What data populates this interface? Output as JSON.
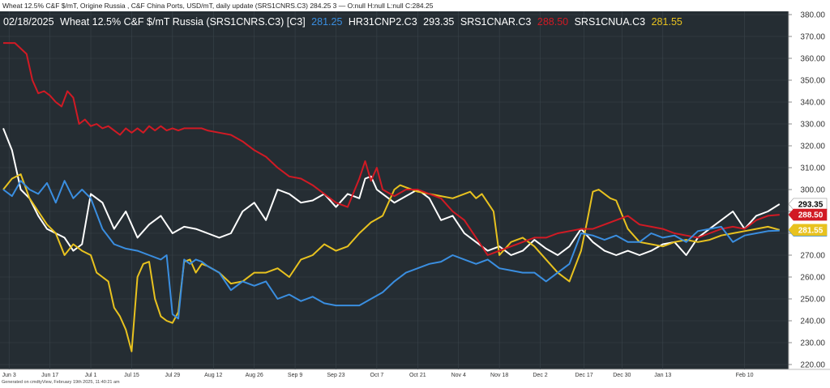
{
  "header": {
    "info": "Wheat 12.5%  C&F $/mT, Origine Russia , C&F China Ports, USD/mT, daily update (SRS1CNRS.C3) 284.25 3 — O:null H:null L:null C:284.25"
  },
  "legend": {
    "date": "02/18/2025",
    "title": "Wheat 12.5% C&F $/mT Russia (SRS1CNRS.C3) [C3]",
    "items": [
      {
        "text": "281.25",
        "color": "#3a8ee0"
      },
      {
        "text": "HR31CNP2.C3",
        "color": "#ffffff"
      },
      {
        "text": "293.35",
        "color": "#ffffff"
      },
      {
        "text": "SRS1CNAR.C3",
        "color": "#ffffff"
      },
      {
        "text": "288.50",
        "color": "#d11a24"
      },
      {
        "text": "SRS1CNUA.C3",
        "color": "#ffffff"
      },
      {
        "text": "281.55",
        "color": "#e8c21f"
      }
    ]
  },
  "footer": {
    "text": "Generated on cmdtyView, February 19th 2025, 11:40:21 am"
  },
  "colors": {
    "background": "#252d33",
    "grid": "#3a444b",
    "russia": "#3a8ee0",
    "hr31": "#ffffff",
    "argentina": "#d11a24",
    "ukraine": "#e8c21f"
  },
  "chart_data": {
    "type": "line",
    "title": "Wheat 12.5% C&F $/mT Russia (SRS1CNRS.C3) [C3]",
    "ylim": [
      220,
      380
    ],
    "xlim": [
      0,
      268
    ],
    "y_ticks": [
      "220.00",
      "230.00",
      "240.00",
      "250.00",
      "260.00",
      "270.00",
      "280.00",
      "290.00",
      "300.00",
      "310.00",
      "320.00",
      "330.00",
      "340.00",
      "350.00",
      "360.00",
      "370.00",
      "380.00"
    ],
    "x_ticks": [
      {
        "label": "Jun 3",
        "x": 2
      },
      {
        "label": "Jun 17",
        "x": 16
      },
      {
        "label": "Jul 1",
        "x": 30
      },
      {
        "label": "Jul 15",
        "x": 44
      },
      {
        "label": "Jul 29",
        "x": 58
      },
      {
        "label": "Aug 12",
        "x": 72
      },
      {
        "label": "Aug 26",
        "x": 86
      },
      {
        "label": "Sep 9",
        "x": 100
      },
      {
        "label": "Sep 23",
        "x": 114
      },
      {
        "label": "Oct 7",
        "x": 128
      },
      {
        "label": "Oct 21",
        "x": 142
      },
      {
        "label": "Nov 4",
        "x": 156
      },
      {
        "label": "Nov 18",
        "x": 170
      },
      {
        "label": "Dec 2",
        "x": 184
      },
      {
        "label": "Dec 17",
        "x": 199
      },
      {
        "label": "Dec 30",
        "x": 212
      },
      {
        "label": "Jan 13",
        "x": 226
      },
      {
        "label": "Feb 10",
        "x": 254
      }
    ],
    "series": [
      {
        "name": "SRS1CNRS.C3",
        "color": "#3a8ee0",
        "last": "281.25",
        "x": [
          0,
          3,
          6,
          9,
          12,
          15,
          18,
          21,
          24,
          27,
          30,
          34,
          38,
          42,
          46,
          50,
          54,
          56,
          58,
          60,
          62,
          64,
          66,
          68,
          70,
          74,
          78,
          82,
          86,
          90,
          94,
          98,
          102,
          106,
          110,
          114,
          118,
          122,
          126,
          130,
          134,
          138,
          142,
          146,
          150,
          154,
          158,
          162,
          166,
          170,
          174,
          178,
          182,
          186,
          190,
          194,
          198,
          202,
          206,
          210,
          214,
          218,
          222,
          226,
          230,
          234,
          238,
          242,
          246,
          250,
          254,
          258,
          262,
          266
        ],
        "y": [
          300,
          297,
          304,
          300,
          298,
          303,
          294,
          304,
          296,
          300,
          296,
          282,
          275,
          273,
          272,
          270,
          268,
          270,
          243,
          241,
          268,
          266,
          268,
          267,
          265,
          262,
          254,
          258,
          256,
          258,
          250,
          252,
          249,
          251,
          248,
          247,
          247,
          247,
          250,
          253,
          258,
          262,
          264,
          266,
          267,
          270,
          268,
          266,
          268,
          264,
          263,
          262,
          262,
          258,
          262,
          266,
          280,
          279,
          277,
          279,
          276,
          276,
          280,
          278,
          279,
          276,
          281,
          282,
          283,
          276,
          279,
          280,
          281,
          281.25
        ]
      },
      {
        "name": "HR31CNP2.C3",
        "color": "#ffffff",
        "last": "293.35",
        "x": [
          0,
          3,
          6,
          9,
          12,
          15,
          18,
          21,
          24,
          27,
          30,
          34,
          38,
          42,
          46,
          50,
          54,
          58,
          62,
          66,
          70,
          74,
          78,
          82,
          86,
          90,
          94,
          98,
          102,
          106,
          110,
          114,
          118,
          122,
          124,
          126,
          128,
          130,
          134,
          138,
          142,
          146,
          150,
          154,
          158,
          162,
          166,
          170,
          174,
          178,
          182,
          186,
          190,
          194,
          198,
          202,
          206,
          210,
          214,
          218,
          222,
          226,
          230,
          234,
          238,
          242,
          246,
          250,
          254,
          258,
          262,
          266
        ],
        "y": [
          328,
          318,
          300,
          296,
          288,
          282,
          280,
          278,
          272,
          275,
          298,
          294,
          282,
          290,
          278,
          284,
          288,
          280,
          283,
          282,
          280,
          278,
          280,
          290,
          294,
          286,
          300,
          298,
          294,
          295,
          298,
          292,
          298,
          296,
          305,
          306,
          300,
          298,
          294,
          297,
          300,
          296,
          286,
          288,
          280,
          276,
          272,
          274,
          270,
          272,
          277,
          273,
          270,
          274,
          282,
          276,
          272,
          270,
          272,
          270,
          272,
          275,
          276,
          270,
          278,
          282,
          286,
          290,
          282,
          288,
          290,
          293.35
        ]
      },
      {
        "name": "SRS1CNAR.C3",
        "color": "#d11a24",
        "last": "288.50",
        "x": [
          0,
          4,
          8,
          10,
          12,
          14,
          16,
          18,
          20,
          22,
          24,
          26,
          28,
          30,
          32,
          34,
          36,
          38,
          40,
          42,
          44,
          46,
          48,
          50,
          52,
          54,
          56,
          58,
          60,
          62,
          64,
          66,
          68,
          70,
          74,
          78,
          82,
          86,
          90,
          94,
          98,
          102,
          106,
          110,
          114,
          118,
          122,
          124,
          126,
          128,
          130,
          134,
          138,
          142,
          146,
          150,
          154,
          158,
          162,
          166,
          170,
          174,
          178,
          182,
          186,
          190,
          194,
          198,
          202,
          206,
          210,
          214,
          218,
          222,
          226,
          230,
          234,
          238,
          242,
          246,
          250,
          254,
          258,
          262,
          266
        ],
        "y": [
          367,
          367,
          362,
          350,
          344,
          345,
          343,
          340,
          338,
          345,
          342,
          330,
          332,
          329,
          330,
          328,
          329,
          327,
          325,
          328,
          326,
          328,
          326,
          329,
          327,
          329,
          327,
          328,
          327,
          328,
          328,
          328,
          328,
          327,
          326,
          325,
          322,
          318,
          315,
          310,
          306,
          305,
          302,
          298,
          294,
          292,
          305,
          313,
          304,
          310,
          300,
          297,
          300,
          300,
          298,
          296,
          290,
          286,
          278,
          270,
          272,
          274,
          276,
          278,
          278,
          280,
          281,
          282,
          282,
          284,
          286,
          288,
          284,
          283,
          282,
          280,
          279,
          278,
          280,
          282,
          283,
          282,
          286,
          288,
          288.5
        ]
      },
      {
        "name": "SRS1CNUA.C3",
        "color": "#e8c21f",
        "last": "281.55",
        "x": [
          0,
          3,
          6,
          9,
          12,
          15,
          18,
          21,
          24,
          27,
          30,
          32,
          34,
          36,
          38,
          40,
          42,
          44,
          46,
          48,
          50,
          52,
          54,
          56,
          58,
          60,
          62,
          64,
          66,
          68,
          70,
          74,
          78,
          82,
          86,
          90,
          94,
          98,
          102,
          106,
          110,
          114,
          118,
          122,
          126,
          130,
          134,
          136,
          138,
          142,
          146,
          150,
          154,
          158,
          160,
          162,
          164,
          166,
          168,
          170,
          174,
          178,
          182,
          186,
          190,
          194,
          198,
          200,
          202,
          204,
          206,
          208,
          210,
          214,
          218,
          222,
          226,
          230,
          234,
          238,
          242,
          246,
          250,
          254,
          258,
          262,
          266
        ],
        "y": [
          300,
          305,
          307,
          296,
          290,
          284,
          280,
          270,
          275,
          272,
          270,
          262,
          260,
          258,
          246,
          242,
          236,
          226,
          260,
          266,
          267,
          250,
          242,
          240,
          239,
          244,
          267,
          268,
          262,
          266,
          265,
          262,
          257,
          258,
          262,
          262,
          264,
          260,
          268,
          270,
          275,
          272,
          274,
          280,
          285,
          288,
          300,
          302,
          301,
          299,
          298,
          297,
          296,
          298,
          299,
          296,
          298,
          294,
          290,
          270,
          276,
          278,
          274,
          268,
          262,
          258,
          272,
          285,
          299,
          300,
          298,
          296,
          295,
          282,
          276,
          275,
          274,
          276,
          277,
          276,
          277,
          279,
          280,
          281,
          282,
          283,
          281.55
        ]
      }
    ]
  }
}
